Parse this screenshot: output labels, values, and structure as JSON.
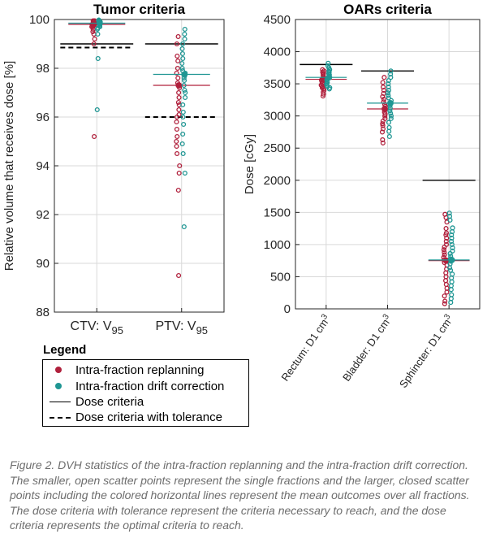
{
  "chart_data": [
    {
      "type": "scatter",
      "title": "Tumor criteria",
      "ylabel": "Relative volume that receives dose [%]",
      "ylim": [
        88,
        100
      ],
      "yticks": [
        "88",
        "90",
        "92",
        "94",
        "96",
        "98",
        "100"
      ],
      "categories": [
        {
          "name": "CTV:",
          "sub": "V",
          "subscript": "95"
        },
        {
          "name": "PTV:",
          "sub": "V",
          "subscript": "95"
        }
      ],
      "grid": true,
      "criteria": [
        {
          "category": 0,
          "kind": "Dose criteria",
          "value": 99.0
        },
        {
          "category": 0,
          "kind": "Dose criteria with tolerance",
          "value": 98.85
        },
        {
          "category": 1,
          "kind": "Dose criteria",
          "value": 99.0
        },
        {
          "category": 1,
          "kind": "Dose criteria with tolerance",
          "value": 96.0
        }
      ],
      "series": [
        {
          "name": "Intra-fraction replanning",
          "color": "#b0203c",
          "means": [
            99.8,
            97.3
          ],
          "values": [
            [
              99.95,
              99.95,
              99.9,
              99.9,
              99.9,
              99.85,
              99.85,
              99.8,
              99.8,
              99.8,
              99.75,
              99.7,
              99.7,
              99.6,
              99.5,
              99.4,
              99.2,
              99.0,
              95.2
            ],
            [
              99.3,
              99.0,
              98.5,
              98.3,
              98.0,
              97.8,
              97.6,
              97.4,
              97.3,
              97.2,
              97.0,
              96.8,
              96.6,
              96.5,
              96.3,
              96.1,
              96.0,
              95.8,
              95.5,
              95.2,
              95.0,
              94.8,
              94.5,
              94.0,
              93.7,
              93.0,
              89.5
            ]
          ]
        },
        {
          "name": "Intra-fraction drift correction",
          "color": "#1f9693",
          "means": [
            99.85,
            97.75
          ],
          "values": [
            [
              99.98,
              99.95,
              99.92,
              99.9,
              99.88,
              99.85,
              99.82,
              99.8,
              99.75,
              99.7,
              99.65,
              99.6,
              99.4,
              98.4,
              96.3
            ],
            [
              99.6,
              99.4,
              99.2,
              99.0,
              98.8,
              98.6,
              98.4,
              98.2,
              98.0,
              97.9,
              97.8,
              97.7,
              97.6,
              97.5,
              97.3,
              97.1,
              97.0,
              96.8,
              96.5,
              96.2,
              96.0,
              95.7,
              95.3,
              94.9,
              94.5,
              93.7,
              91.5
            ]
          ]
        }
      ]
    },
    {
      "type": "scatter",
      "title": "OARs criteria",
      "ylabel": "Dose [cGy]",
      "ylim": [
        0,
        4500
      ],
      "yticks": [
        "0",
        "500",
        "1000",
        "1500",
        "2000",
        "2500",
        "3000",
        "3500",
        "4000",
        "4500"
      ],
      "categories": [
        {
          "label": "Rectum: D1 cm",
          "sup": "3"
        },
        {
          "label": "Bladder: D1 cm",
          "sup": "3"
        },
        {
          "label": "Sphincter: D1 cm",
          "sup": "3"
        }
      ],
      "grid": true,
      "criteria": [
        {
          "category": 0,
          "kind": "Dose criteria",
          "value": 3800
        },
        {
          "category": 1,
          "kind": "Dose criteria",
          "value": 3700
        },
        {
          "category": 2,
          "kind": "Dose criteria",
          "value": 2000
        }
      ],
      "series": [
        {
          "name": "Intra-fraction replanning",
          "color": "#b0203c",
          "means": [
            3570,
            3110,
            750
          ],
          "values": [
            [
              3720,
              3700,
              3680,
              3660,
              3640,
              3620,
              3600,
              3580,
              3560,
              3540,
              3520,
              3500,
              3480,
              3460,
              3440,
              3420,
              3400,
              3370,
              3340,
              3310
            ],
            [
              3600,
              3520,
              3450,
              3400,
              3350,
              3300,
              3260,
              3220,
              3180,
              3150,
              3120,
              3090,
              3060,
              3030,
              3000,
              2960,
              2920,
              2880,
              2850,
              2800,
              2750,
              2630,
              2580
            ],
            [
              1470,
              1420,
              1350,
              1250,
              1180,
              1150,
              1100,
              1050,
              1000,
              960,
              920,
              880,
              840,
              800,
              760,
              720,
              680,
              620,
              560,
              500,
              440,
              380,
              320,
              260,
              200,
              120,
              80
            ]
          ]
        },
        {
          "name": "Intra-fraction drift correction",
          "color": "#1f9693",
          "means": [
            3600,
            3200,
            760
          ],
          "values": [
            [
              3820,
              3780,
              3750,
              3720,
              3700,
              3680,
              3660,
              3640,
              3620,
              3600,
              3580,
              3560,
              3540,
              3520,
              3500,
              3480,
              3460,
              3440,
              3420
            ],
            [
              3700,
              3650,
              3600,
              3550,
              3500,
              3450,
              3400,
              3360,
              3320,
              3280,
              3240,
              3200,
              3160,
              3120,
              3080,
              3040,
              3000,
              2960,
              2900,
              2820,
              2760,
              2680
            ],
            [
              1490,
              1440,
              1380,
              1260,
              1200,
              1150,
              1100,
              1050,
              1000,
              950,
              900,
              860,
              820,
              780,
              740,
              700,
              640,
              600,
              540,
              480,
              420,
              360,
              300,
              220,
              160,
              100
            ]
          ]
        }
      ]
    }
  ],
  "legend": {
    "title": "Legend",
    "items": [
      {
        "label": "Intra-fraction replanning",
        "marker": "dot",
        "color": "#b0203c"
      },
      {
        "label": "Intra-fraction drift correction",
        "marker": "dot",
        "color": "#1f9693"
      },
      {
        "label": "Dose criteria",
        "marker": "solid-line",
        "color": "#000000"
      },
      {
        "label": "Dose criteria with tolerance",
        "marker": "dashed-line",
        "color": "#000000"
      }
    ]
  },
  "caption": "Figure 2. DVH statistics of the intra-fraction replanning and the intra-fraction drift correction. The smaller, open scatter points represent the single fractions and the larger, closed scatter points including the colored horizontal lines represent the mean outcomes over all fractions. The dose criteria with tolerance represent the criteria necessary to reach, and the dose criteria represents the optimal criteria to reach."
}
